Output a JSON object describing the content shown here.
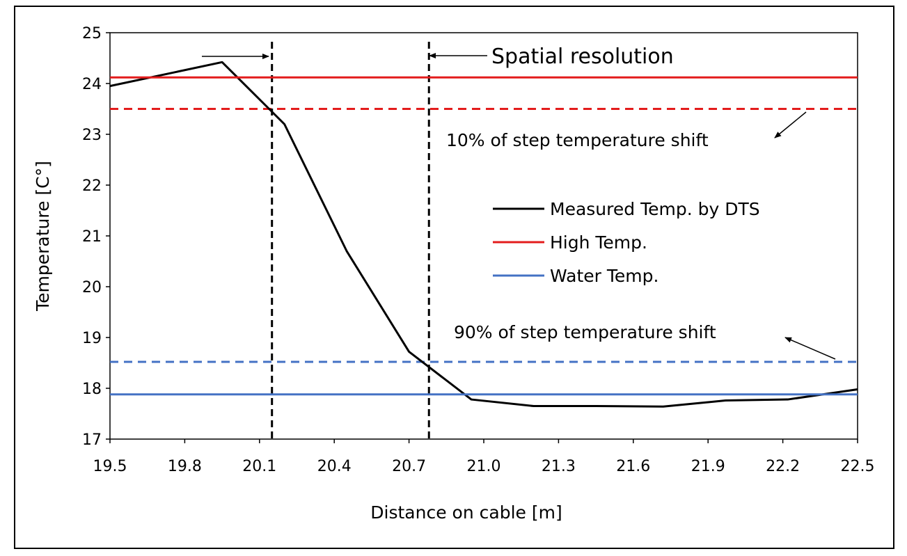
{
  "chart_data": {
    "type": "line",
    "title": "",
    "xlabel": "Distance on cable [m]",
    "ylabel": "Temperature [C°]",
    "xlim": [
      19.5,
      22.5
    ],
    "ylim": [
      17,
      25
    ],
    "xticks": [
      "19.5",
      "19.8",
      "20.1",
      "20.4",
      "20.7",
      "21.0",
      "21.3",
      "21.6",
      "21.9",
      "22.2",
      "22.5"
    ],
    "yticks": [
      "17",
      "18",
      "19",
      "20",
      "21",
      "22",
      "23",
      "24",
      "25"
    ],
    "series": [
      {
        "name": "Measured Temp. by DTS",
        "color": "#000000",
        "x": [
          19.5,
          19.95,
          20.2,
          20.45,
          20.7,
          20.95,
          21.2,
          21.45,
          21.72,
          21.97,
          22.22,
          22.5
        ],
        "y": [
          23.95,
          24.42,
          23.2,
          20.7,
          18.72,
          17.78,
          17.65,
          17.65,
          17.64,
          17.76,
          17.78,
          17.98
        ]
      },
      {
        "name": "High Temp.",
        "color": "#e31c1c",
        "y": 24.12
      },
      {
        "name": "Water Temp.",
        "color": "#4472c4",
        "y": 17.88
      }
    ],
    "reference_lines": [
      {
        "axis": "y",
        "value": 23.5,
        "color": "#e31c1c",
        "style": "dashed"
      },
      {
        "axis": "y",
        "value": 18.52,
        "color": "#4472c4",
        "style": "dashed"
      },
      {
        "axis": "x",
        "value": 20.15,
        "color": "#000000",
        "style": "dashed"
      },
      {
        "axis": "x",
        "value": 20.78,
        "color": "#000000",
        "style": "dashed"
      }
    ],
    "annotations": {
      "spatial_resolution": "Spatial resolution",
      "ten_percent": "10% of step temperature shift",
      "ninety_percent": "90% of step temperature shift"
    },
    "legend": {
      "placement": "center-right",
      "entries": [
        "Measured Temp. by DTS",
        "High Temp.",
        "Water Temp."
      ]
    },
    "grid": false
  }
}
